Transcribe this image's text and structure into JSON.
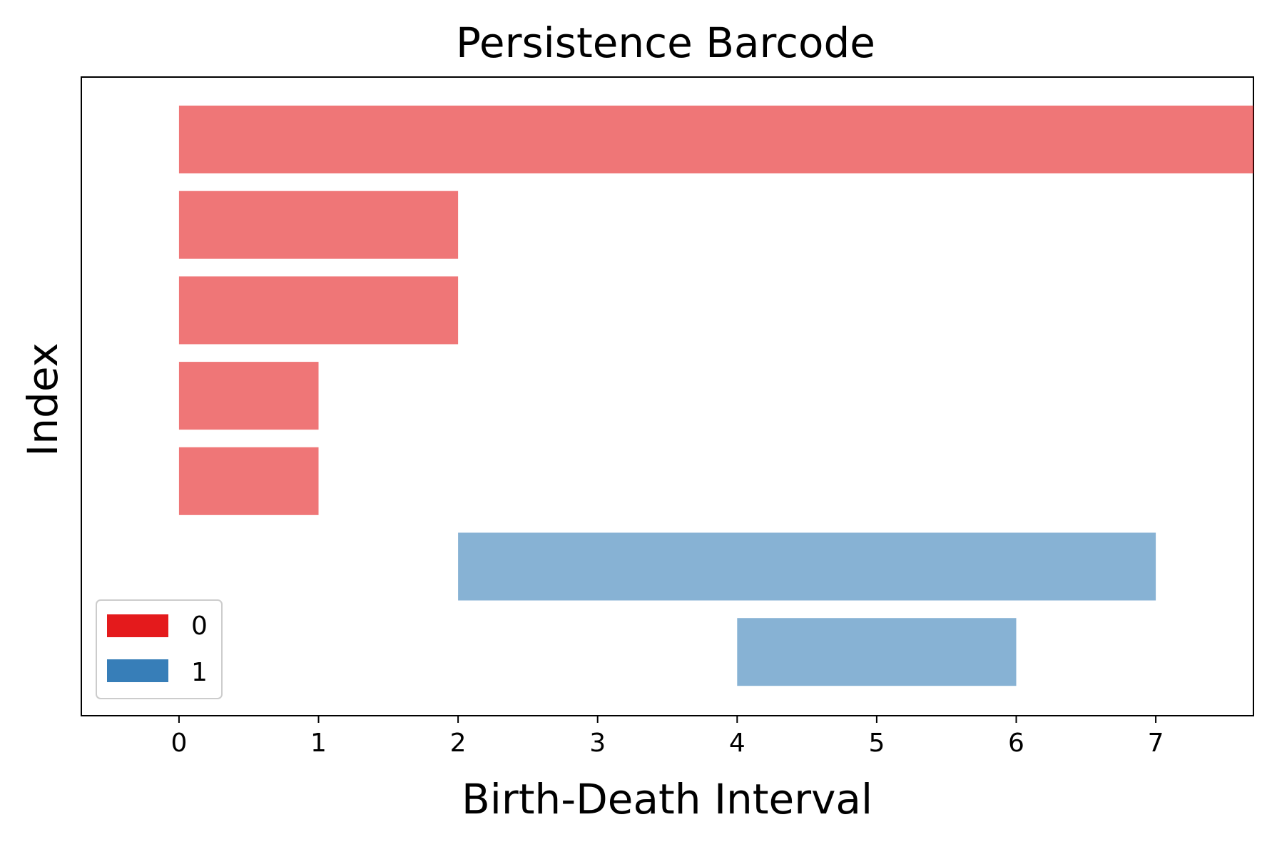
{
  "chart_data": {
    "type": "barcode",
    "title": "Persistence Barcode",
    "xlabel": "Birth-Death Interval",
    "ylabel": "Index",
    "xlim": [
      -0.7,
      7.7
    ],
    "xticks": [
      "0",
      "1",
      "2",
      "3",
      "4",
      "5",
      "6",
      "7"
    ],
    "grid": false,
    "legend_position": "lower-left",
    "series": [
      {
        "name": "0",
        "color": "#e41a1c",
        "intervals": [
          {
            "birth": 0,
            "death": 7.7
          },
          {
            "birth": 0,
            "death": 2
          },
          {
            "birth": 0,
            "death": 2
          },
          {
            "birth": 0,
            "death": 1
          },
          {
            "birth": 0,
            "death": 1
          }
        ]
      },
      {
        "name": "1",
        "color": "#377eb8",
        "intervals": [
          {
            "birth": 2,
            "death": 7
          },
          {
            "birth": 4,
            "death": 6
          }
        ]
      }
    ],
    "bar_opacity": 0.6
  }
}
